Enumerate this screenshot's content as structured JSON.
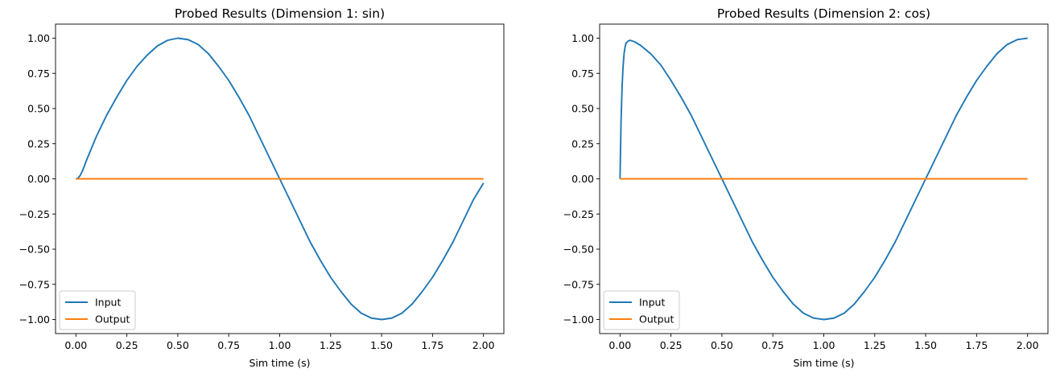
{
  "chart_data": [
    {
      "type": "line",
      "title": "Probed Results (Dimension 1: sin)",
      "xlabel": "Sim time (s)",
      "ylabel": "",
      "xlim": [
        -0.1,
        2.1
      ],
      "ylim": [
        -1.1,
        1.1
      ],
      "xticks": [
        0.0,
        0.25,
        0.5,
        0.75,
        1.0,
        1.25,
        1.5,
        1.75,
        2.0
      ],
      "xtick_labels": [
        "0.00",
        "0.25",
        "0.50",
        "0.75",
        "1.00",
        "1.25",
        "1.50",
        "1.75",
        "2.00"
      ],
      "yticks": [
        -1.0,
        -0.75,
        -0.5,
        -0.25,
        0.0,
        0.25,
        0.5,
        0.75,
        1.0
      ],
      "ytick_labels": [
        "−1.00",
        "−0.75",
        "−0.50",
        "−0.25",
        "0.00",
        "0.25",
        "0.50",
        "0.75",
        "1.00"
      ],
      "legend": "lower-left",
      "grid": false,
      "series": [
        {
          "name": "Input",
          "color": "#1f77b4",
          "x": [
            0.0,
            0.01,
            0.02,
            0.03,
            0.04,
            0.05,
            0.1,
            0.15,
            0.2,
            0.25,
            0.3,
            0.35,
            0.4,
            0.45,
            0.5,
            0.55,
            0.6,
            0.65,
            0.7,
            0.75,
            0.8,
            0.85,
            0.9,
            0.95,
            1.0,
            1.05,
            1.1,
            1.15,
            1.2,
            1.25,
            1.3,
            1.35,
            1.4,
            1.45,
            1.5,
            1.55,
            1.6,
            1.65,
            1.7,
            1.75,
            1.8,
            1.85,
            1.9,
            1.95,
            2.0
          ],
          "y": [
            0.0,
            0.005,
            0.022,
            0.05,
            0.085,
            0.125,
            0.3,
            0.45,
            0.58,
            0.7,
            0.8,
            0.88,
            0.945,
            0.985,
            1.0,
            0.99,
            0.955,
            0.89,
            0.8,
            0.7,
            0.58,
            0.45,
            0.3,
            0.15,
            0.0,
            -0.15,
            -0.3,
            -0.45,
            -0.58,
            -0.7,
            -0.8,
            -0.89,
            -0.955,
            -0.99,
            -1.0,
            -0.99,
            -0.955,
            -0.89,
            -0.8,
            -0.7,
            -0.58,
            -0.45,
            -0.3,
            -0.15,
            -0.03
          ]
        },
        {
          "name": "Output",
          "color": "#ff7f0e",
          "x": [
            0.0,
            2.0
          ],
          "y": [
            0.0,
            0.0
          ]
        }
      ]
    },
    {
      "type": "line",
      "title": "Probed Results (Dimension 2: cos)",
      "xlabel": "Sim time (s)",
      "ylabel": "",
      "xlim": [
        -0.1,
        2.1
      ],
      "ylim": [
        -1.1,
        1.1
      ],
      "xticks": [
        0.0,
        0.25,
        0.5,
        0.75,
        1.0,
        1.25,
        1.5,
        1.75,
        2.0
      ],
      "xtick_labels": [
        "0.00",
        "0.25",
        "0.50",
        "0.75",
        "1.00",
        "1.25",
        "1.50",
        "1.75",
        "2.00"
      ],
      "yticks": [
        -1.0,
        -0.75,
        -0.5,
        -0.25,
        0.0,
        0.25,
        0.5,
        0.75,
        1.0
      ],
      "ytick_labels": [
        "−1.00",
        "−0.75",
        "−0.50",
        "−0.25",
        "0.00",
        "0.25",
        "0.50",
        "0.75",
        "1.00"
      ],
      "legend": "lower-left",
      "grid": false,
      "series": [
        {
          "name": "Input",
          "color": "#1f77b4",
          "x": [
            0.0,
            0.005,
            0.01,
            0.015,
            0.02,
            0.025,
            0.03,
            0.04,
            0.05,
            0.07,
            0.1,
            0.15,
            0.2,
            0.25,
            0.3,
            0.35,
            0.4,
            0.45,
            0.5,
            0.55,
            0.6,
            0.65,
            0.7,
            0.75,
            0.8,
            0.85,
            0.9,
            0.95,
            1.0,
            1.05,
            1.1,
            1.15,
            1.2,
            1.25,
            1.3,
            1.35,
            1.4,
            1.45,
            1.5,
            1.55,
            1.6,
            1.65,
            1.7,
            1.75,
            1.8,
            1.85,
            1.9,
            1.95,
            2.0
          ],
          "y": [
            0.0,
            0.4,
            0.65,
            0.8,
            0.89,
            0.94,
            0.965,
            0.98,
            0.985,
            0.975,
            0.95,
            0.89,
            0.81,
            0.7,
            0.58,
            0.45,
            0.3,
            0.15,
            0.0,
            -0.15,
            -0.3,
            -0.45,
            -0.58,
            -0.7,
            -0.8,
            -0.89,
            -0.955,
            -0.99,
            -1.0,
            -0.99,
            -0.955,
            -0.89,
            -0.8,
            -0.7,
            -0.58,
            -0.45,
            -0.3,
            -0.15,
            0.0,
            0.15,
            0.3,
            0.45,
            0.58,
            0.7,
            0.8,
            0.89,
            0.955,
            0.99,
            1.0
          ]
        },
        {
          "name": "Output",
          "color": "#ff7f0e",
          "x": [
            0.0,
            2.0
          ],
          "y": [
            0.0,
            0.0
          ]
        }
      ]
    }
  ]
}
